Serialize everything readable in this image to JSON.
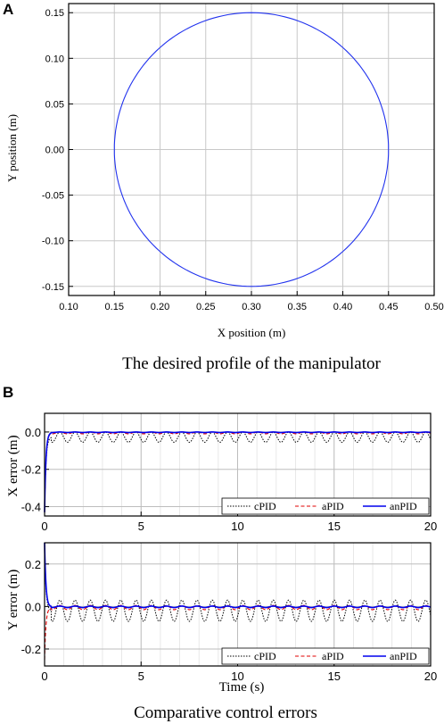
{
  "panel_a": {
    "label": "A",
    "caption": "The desired profile of the manipulator"
  },
  "panel_b": {
    "label": "B",
    "caption": "Comparative control errors"
  },
  "colors": {
    "cPID": "#000000",
    "aPID": "#e00000",
    "anPID": "#0000ee",
    "circle": "#2233ee",
    "grid": "#c8c8c8"
  },
  "chart_data": [
    {
      "type": "line",
      "xlabel": "X position (m)",
      "ylabel": "Y position (m)",
      "xlim": [
        0.1,
        0.5
      ],
      "ylim": [
        -0.16,
        0.16
      ],
      "xticks": [
        "0.10",
        "0.15",
        "0.20",
        "0.25",
        "0.30",
        "0.35",
        "0.40",
        "0.45",
        "0.50"
      ],
      "yticks": [
        "-0.15",
        "-0.10",
        "-0.05",
        "0.00",
        "0.05",
        "0.10",
        "0.15"
      ],
      "grid": true,
      "series": [
        {
          "shape": "circle",
          "center_x": 0.3,
          "center_y": 0.0,
          "radius": 0.15
        }
      ]
    },
    {
      "type": "line",
      "xlabel": "",
      "ylabel": "X error (m)",
      "xlim": [
        0,
        20
      ],
      "ylim": [
        -0.45,
        0.1
      ],
      "xticks": [
        "0",
        "5",
        "10",
        "15",
        "20"
      ],
      "yticks": [
        "-0.4",
        "-0.2",
        "0.0"
      ],
      "grid": true,
      "legend": "bottom-right",
      "series": [
        {
          "name": "cPID",
          "initial": -0.43,
          "oscillation_period": 0.79,
          "min": -0.055,
          "max": 0.0
        },
        {
          "name": "aPID",
          "initial": -0.43,
          "oscillation_period": 0.79,
          "min": -0.01,
          "max": 0.0
        },
        {
          "name": "anPID",
          "initial": -0.43,
          "oscillation_period": 0.79,
          "min": -0.003,
          "max": 0.0
        }
      ]
    },
    {
      "type": "line",
      "xlabel": "Time (s)",
      "ylabel": "Y error (m)",
      "xlim": [
        0,
        20
      ],
      "ylim": [
        -0.28,
        0.3
      ],
      "xticks": [
        "0",
        "5",
        "10",
        "15",
        "20"
      ],
      "yticks": [
        "-0.2",
        "0.0",
        "0.2"
      ],
      "grid": true,
      "legend": "bottom-right",
      "series": [
        {
          "name": "cPID",
          "initial": 0.3,
          "oscillation_period": 0.79,
          "min": -0.07,
          "max": 0.03
        },
        {
          "name": "aPID",
          "initial": -0.25,
          "oscillation_period": 0.79,
          "min": -0.015,
          "max": 0.005
        },
        {
          "name": "anPID",
          "initial": 0.3,
          "oscillation_period": 0.79,
          "min": -0.005,
          "max": 0.002
        }
      ]
    }
  ]
}
